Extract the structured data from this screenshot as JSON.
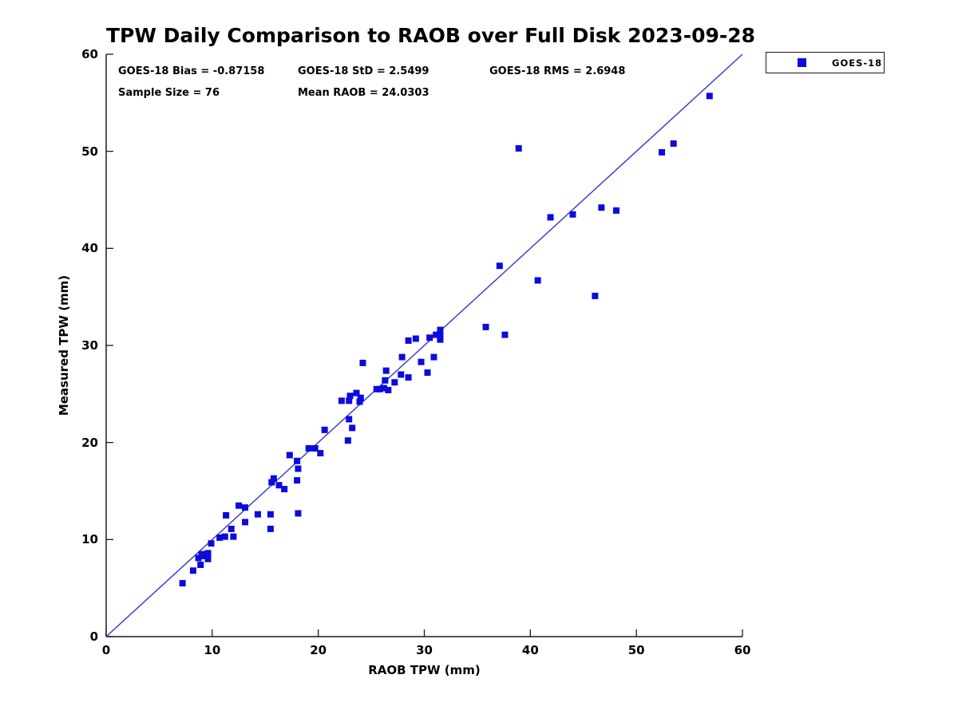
{
  "figure": {
    "title": "TPW Daily Comparison to RAOB over Full Disk 2023-09-28",
    "stats": {
      "bias": "GOES-18 Bias = -0.87158",
      "std": "GOES-18 StD = 2.5499",
      "rms": "GOES-18 RMS = 2.6948",
      "sample_size": "Sample Size = 76",
      "mean_raob": "Mean RAOB = 24.0303"
    },
    "legend": {
      "label": "GOES-18"
    },
    "colors": {
      "marker": "#0b0bdd",
      "line": "#3535c8",
      "axis": "#1a1a1a"
    }
  },
  "chart_data": {
    "type": "scatter",
    "title": "TPW Daily Comparison to RAOB over Full Disk 2023-09-28",
    "xlabel": "RAOB TPW (mm)",
    "ylabel": "Measured TPW (mm)",
    "xlim": [
      0,
      60
    ],
    "ylim": [
      0,
      60
    ],
    "xticks": [
      0,
      10,
      20,
      30,
      40,
      50,
      60
    ],
    "yticks": [
      0,
      10,
      20,
      30,
      40,
      50,
      60
    ],
    "grid": false,
    "identity_line": true,
    "legend_position": "outside-top-right",
    "stats": {
      "bias": -0.87158,
      "std": 2.5499,
      "rms": 2.6948,
      "sample_size": 76,
      "mean_raob": 24.0303
    },
    "series": [
      {
        "name": "GOES-18",
        "marker": "square",
        "color": "#0b0bdd",
        "points": [
          [
            7.2,
            5.5
          ],
          [
            8.2,
            6.8
          ],
          [
            8.7,
            8.1
          ],
          [
            8.9,
            7.4
          ],
          [
            9.0,
            8.5
          ],
          [
            9.3,
            8.3
          ],
          [
            9.6,
            8.0
          ],
          [
            9.6,
            8.6
          ],
          [
            9.9,
            9.6
          ],
          [
            10.7,
            10.2
          ],
          [
            11.2,
            10.3
          ],
          [
            12.0,
            10.3
          ],
          [
            11.3,
            12.5
          ],
          [
            11.8,
            11.1
          ],
          [
            12.5,
            13.5
          ],
          [
            13.1,
            13.3
          ],
          [
            13.1,
            11.8
          ],
          [
            14.3,
            12.6
          ],
          [
            15.5,
            12.6
          ],
          [
            15.5,
            11.1
          ],
          [
            15.6,
            15.9
          ],
          [
            15.8,
            16.3
          ],
          [
            16.3,
            15.6
          ],
          [
            16.8,
            15.2
          ],
          [
            17.3,
            18.7
          ],
          [
            18.0,
            18.1
          ],
          [
            18.0,
            16.1
          ],
          [
            18.1,
            17.3
          ],
          [
            18.1,
            12.7
          ],
          [
            19.1,
            19.4
          ],
          [
            19.7,
            19.4
          ],
          [
            20.2,
            18.9
          ],
          [
            20.6,
            21.3
          ],
          [
            22.8,
            20.2
          ],
          [
            22.9,
            22.4
          ],
          [
            23.2,
            21.5
          ],
          [
            22.2,
            24.3
          ],
          [
            22.9,
            24.3
          ],
          [
            23.0,
            24.8
          ],
          [
            23.6,
            25.1
          ],
          [
            23.9,
            24.2
          ],
          [
            24.0,
            24.6
          ],
          [
            24.2,
            28.2
          ],
          [
            25.5,
            25.5
          ],
          [
            25.8,
            25.5
          ],
          [
            26.2,
            25.6
          ],
          [
            26.3,
            26.4
          ],
          [
            26.4,
            27.4
          ],
          [
            26.6,
            25.4
          ],
          [
            27.2,
            26.2
          ],
          [
            27.8,
            27.0
          ],
          [
            28.5,
            26.7
          ],
          [
            27.9,
            28.8
          ],
          [
            28.5,
            30.5
          ],
          [
            29.2,
            30.7
          ],
          [
            29.7,
            28.3
          ],
          [
            30.3,
            27.2
          ],
          [
            30.5,
            30.8
          ],
          [
            30.9,
            28.8
          ],
          [
            31.1,
            31.1
          ],
          [
            31.5,
            31.6
          ],
          [
            31.5,
            31.0
          ],
          [
            31.5,
            30.6
          ],
          [
            35.8,
            31.9
          ],
          [
            37.6,
            31.1
          ],
          [
            37.1,
            38.2
          ],
          [
            38.9,
            50.3
          ],
          [
            40.7,
            36.7
          ],
          [
            41.9,
            43.2
          ],
          [
            44.0,
            43.5
          ],
          [
            46.1,
            35.1
          ],
          [
            46.7,
            44.2
          ],
          [
            48.1,
            43.9
          ],
          [
            52.4,
            49.9
          ],
          [
            53.5,
            50.8
          ],
          [
            56.9,
            55.7
          ]
        ]
      }
    ]
  }
}
